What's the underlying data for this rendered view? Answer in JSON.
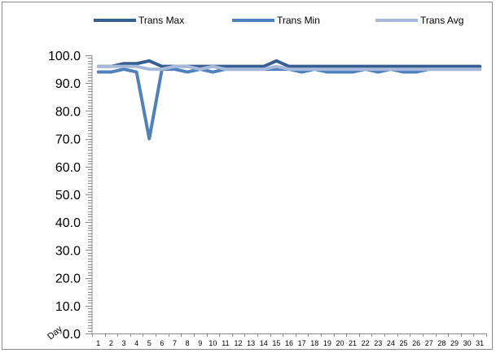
{
  "chart_data": {
    "type": "line",
    "title": "",
    "xlabel": "Day",
    "ylabel": "",
    "ylim": [
      0,
      100
    ],
    "y_ticks": [
      "0.0",
      "10.0",
      "20.0",
      "30.0",
      "40.0",
      "50.0",
      "60.0",
      "70.0",
      "80.0",
      "90.0",
      "100.0"
    ],
    "categories": [
      "1",
      "2",
      "3",
      "4",
      "5",
      "6",
      "7",
      "8",
      "9",
      "10",
      "11",
      "12",
      "13",
      "14",
      "15",
      "16",
      "17",
      "18",
      "19",
      "20",
      "21",
      "22",
      "23",
      "24",
      "25",
      "26",
      "27",
      "28",
      "29",
      "30",
      "31"
    ],
    "legend_position": "top",
    "grid": false,
    "series": [
      {
        "name": "Trans Max",
        "color": "#365f91",
        "values": [
          96,
          96,
          97,
          97,
          98,
          96,
          96,
          96,
          96,
          96,
          96,
          96,
          96,
          96,
          98,
          96,
          96,
          96,
          96,
          96,
          96,
          96,
          96,
          96,
          96,
          96,
          96,
          96,
          96,
          96,
          96
        ]
      },
      {
        "name": "Trans Min",
        "color": "#4f81bd",
        "values": [
          94,
          94,
          95,
          94,
          70,
          95,
          95,
          94,
          95,
          94,
          95,
          95,
          95,
          95,
          95,
          95,
          94,
          95,
          94,
          94,
          94,
          95,
          94,
          95,
          94,
          94,
          95,
          95,
          95,
          95,
          95
        ]
      },
      {
        "name": "Trans Avg",
        "color": "#a6b9d8",
        "values": [
          96,
          96,
          96,
          96,
          95,
          95,
          96,
          96,
          95,
          96,
          95,
          95,
          95,
          95,
          96,
          95,
          95,
          95,
          95,
          95,
          95,
          95,
          95,
          95,
          95,
          95,
          95,
          95,
          95,
          95,
          95
        ]
      }
    ]
  }
}
